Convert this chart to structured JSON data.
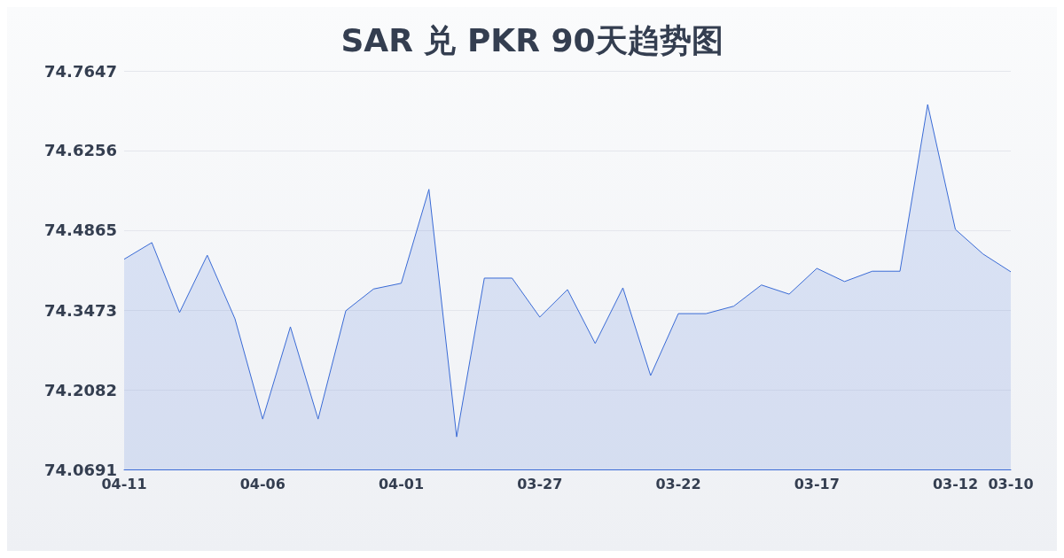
{
  "chart_data": {
    "type": "area",
    "title": "SAR 兑 PKR 90天趋势图",
    "categories": [
      "04-11",
      null,
      null,
      null,
      null,
      "04-06",
      null,
      null,
      null,
      null,
      "04-01",
      null,
      null,
      null,
      null,
      "03-27",
      null,
      null,
      null,
      null,
      "03-22",
      null,
      null,
      null,
      null,
      "03-17",
      null,
      null,
      null,
      null,
      "03-12",
      null,
      "03-10"
    ],
    "series": [
      {
        "color": "#3a6bd6",
        "values": [
          74.436,
          74.465,
          74.343,
          74.443,
          74.332,
          74.157,
          74.318,
          74.157,
          74.346,
          74.384,
          74.394,
          74.558,
          74.126,
          74.403,
          74.403,
          74.335,
          74.383,
          74.289,
          74.386,
          74.233,
          74.341,
          74.341,
          74.354,
          74.391,
          74.375,
          74.42,
          74.397,
          74.415,
          74.415,
          74.706,
          74.488,
          74.445,
          74.414
        ]
      }
    ],
    "ylim": [
      74.0691,
      74.7647
    ],
    "yticks": [
      74.0691,
      74.2082,
      74.3473,
      74.4865,
      74.6256,
      74.7647
    ],
    "grid": "y",
    "marker": "none",
    "line_style": "solid"
  }
}
